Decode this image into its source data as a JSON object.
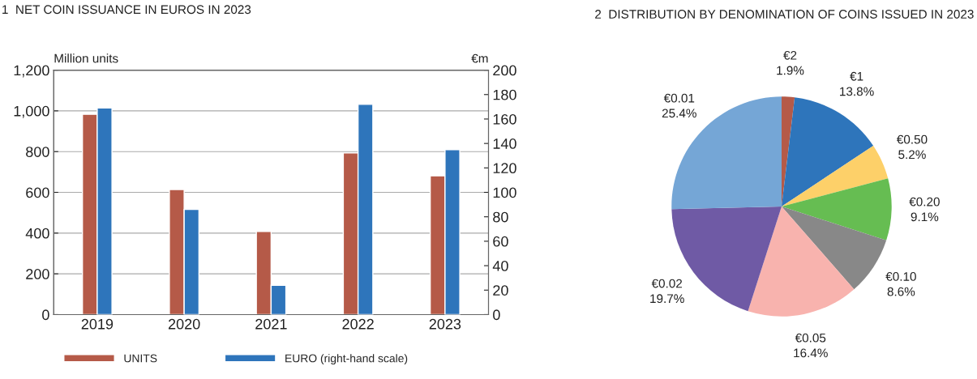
{
  "chart_data": [
    {
      "type": "bar",
      "title": "1  NET COIN ISSUANCE IN EUROS IN 2023",
      "ylabel": "Million units",
      "y2label": "€m",
      "categories": [
        "2019",
        "2020",
        "2021",
        "2022",
        "2023"
      ],
      "series": [
        {
          "name": "UNITS",
          "color": "#b55a48",
          "values": [
            983,
            614,
            408,
            794,
            681
          ]
        },
        {
          "name": "EURO (right-hand scale)",
          "color": "#2e75bb",
          "axis": "y2",
          "values": [
            169,
            86,
            24,
            172,
            135
          ]
        }
      ],
      "ylim": [
        0,
        1200
      ],
      "yticks": [
        0,
        {
          "value": 200,
          "label": "200"
        },
        {
          "value": 400,
          "label": "400"
        },
        {
          "value": 600,
          "label": "600"
        },
        {
          "value": 800,
          "label": "800"
        },
        {
          "value": 1000,
          "label": "1,000"
        },
        {
          "value": 1200,
          "label": "1,200"
        }
      ],
      "y2lim": [
        0,
        200
      ],
      "y2ticks": [
        0,
        20,
        40,
        60,
        80,
        100,
        120,
        140,
        160,
        180,
        200
      ],
      "grid": "y",
      "legend": "bottom"
    },
    {
      "type": "pie",
      "title": "2  DISTRIBUTION BY DENOMINATION OF COINS ISSUED IN 2023",
      "categories": [
        "€2",
        "€1",
        "€0.50",
        "€0.20",
        "€0.10",
        "€0.05",
        "€0.02",
        "€0.01"
      ],
      "values": [
        1.9,
        13.8,
        5.2,
        9.1,
        8.6,
        16.4,
        19.7,
        25.4
      ],
      "colors": [
        "#b55a48",
        "#2e75bb",
        "#fdd069",
        "#66bd52",
        "#888888",
        "#f8b3ae",
        "#6f5aa5",
        "#75a6d6"
      ],
      "value_labels": [
        "1.9%",
        "13.8%",
        "5.2%",
        "9.1%",
        "8.6%",
        "16.4%",
        "19.7%",
        "25.4%"
      ]
    }
  ]
}
